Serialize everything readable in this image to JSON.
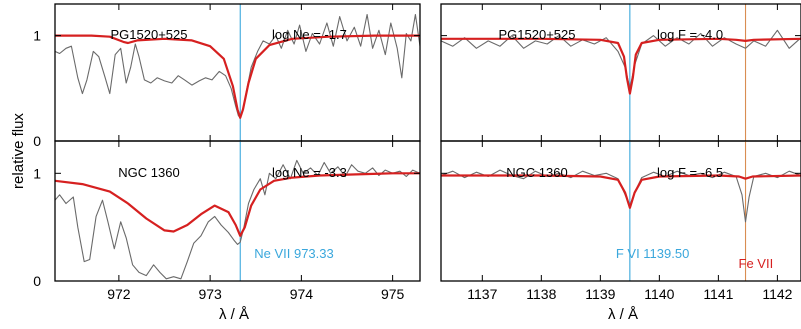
{
  "figure": {
    "ylabel": "relative flux",
    "xlabel": "λ / Å",
    "colors": {
      "model": "#d62020",
      "observed": "#6a6a6a",
      "line_marker_blue": "#3aa7dc",
      "line_marker_orange": "#d98d52",
      "annotation_blue": "#3aa7dc",
      "annotation_red": "#d62020"
    }
  },
  "chart_data": [
    {
      "type": "line",
      "panel": "left-top",
      "star": "PG1520+525",
      "abundance_label": "log Ne = -1.7",
      "xlim": [
        971.3,
        975.3
      ],
      "ylim": [
        0,
        1.3
      ],
      "xticks": [
        972,
        973,
        974,
        975
      ],
      "yticks": [
        0,
        1
      ],
      "ytick_labels": [
        "0",
        "1"
      ],
      "marker_lines": [
        {
          "x": 973.33,
          "color": "#3aa7dc"
        }
      ],
      "series": [
        {
          "kind": "model",
          "x": [
            971.3,
            971.7,
            971.9,
            972.05,
            972.1,
            972.2,
            972.5,
            972.8,
            973.0,
            973.15,
            973.25,
            973.3,
            973.33,
            973.36,
            973.42,
            973.5,
            973.65,
            973.9,
            974.3,
            974.8,
            975.3
          ],
          "y": [
            1.0,
            1.0,
            0.99,
            0.94,
            0.93,
            0.955,
            0.97,
            0.955,
            0.9,
            0.78,
            0.52,
            0.3,
            0.22,
            0.3,
            0.55,
            0.78,
            0.91,
            0.97,
            0.99,
            1.0,
            1.0
          ]
        },
        {
          "kind": "observed",
          "x": [
            971.3,
            971.35,
            971.42,
            971.48,
            971.55,
            971.6,
            971.65,
            971.72,
            971.78,
            971.85,
            971.9,
            971.96,
            972.02,
            972.08,
            972.13,
            972.18,
            972.22,
            972.28,
            972.35,
            972.42,
            972.5,
            972.58,
            972.65,
            972.72,
            972.8,
            972.88,
            972.95,
            973.02,
            973.1,
            973.17,
            973.23,
            973.28,
            973.31,
            973.33,
            973.36,
            973.4,
            973.45,
            973.52,
            973.58,
            973.65,
            973.72,
            973.78,
            973.85,
            973.92,
            973.98,
            974.05,
            974.12,
            974.2,
            974.28,
            974.35,
            974.42,
            974.5,
            974.58,
            974.65,
            974.72,
            974.78,
            974.85,
            974.92,
            974.98,
            975.05,
            975.1,
            975.15,
            975.2,
            975.25,
            975.3
          ],
          "y": [
            0.85,
            0.83,
            0.88,
            0.9,
            0.6,
            0.45,
            0.58,
            0.85,
            0.8,
            0.6,
            0.45,
            0.82,
            0.88,
            0.55,
            0.7,
            0.92,
            0.8,
            0.58,
            0.55,
            0.6,
            0.57,
            0.55,
            0.62,
            0.58,
            0.53,
            0.57,
            0.6,
            0.58,
            0.66,
            0.62,
            0.5,
            0.33,
            0.24,
            0.22,
            0.3,
            0.48,
            0.7,
            0.85,
            0.95,
            0.92,
            1.0,
            0.88,
            1.05,
            0.92,
            1.1,
            0.85,
            1.02,
            0.92,
            1.12,
            0.9,
            1.18,
            0.95,
            1.08,
            0.9,
            1.2,
            0.88,
            1.05,
            0.82,
            1.12,
            0.88,
            0.6,
            1.02,
            0.95,
            1.2,
            0.9
          ]
        }
      ]
    },
    {
      "type": "line",
      "panel": "left-bottom",
      "star": "NGC 1360",
      "abundance_label": "log Ne = -3.3",
      "line_annotation": "Ne VII 973.33",
      "xlim": [
        971.3,
        975.3
      ],
      "ylim": [
        0,
        1.3
      ],
      "xticks": [
        972,
        973,
        974,
        975
      ],
      "yticks": [
        0,
        1
      ],
      "ytick_labels": [
        "0",
        "1"
      ],
      "marker_lines": [
        {
          "x": 973.33,
          "color": "#3aa7dc"
        }
      ],
      "series": [
        {
          "kind": "model",
          "x": [
            971.3,
            971.6,
            971.9,
            972.1,
            972.3,
            972.5,
            972.6,
            972.75,
            972.9,
            973.05,
            973.2,
            973.28,
            973.33,
            973.38,
            973.45,
            973.55,
            973.7,
            973.9,
            974.2,
            974.6,
            975.0,
            975.3
          ],
          "y": [
            0.93,
            0.9,
            0.83,
            0.72,
            0.58,
            0.47,
            0.46,
            0.52,
            0.62,
            0.7,
            0.64,
            0.52,
            0.42,
            0.5,
            0.7,
            0.85,
            0.93,
            0.96,
            0.98,
            0.99,
            1.0,
            1.0
          ]
        },
        {
          "kind": "observed",
          "x": [
            971.3,
            971.35,
            971.42,
            971.5,
            971.55,
            971.62,
            971.68,
            971.75,
            971.82,
            971.88,
            971.95,
            972.02,
            972.08,
            972.15,
            972.22,
            972.3,
            972.38,
            972.45,
            972.52,
            972.6,
            972.68,
            972.75,
            972.82,
            972.9,
            972.98,
            973.05,
            973.12,
            973.2,
            973.26,
            973.3,
            973.33,
            973.37,
            973.42,
            973.48,
            973.55,
            973.6,
            973.65,
            973.72,
            973.8,
            973.88,
            973.95,
            974.02,
            974.1,
            974.18,
            974.25,
            974.32,
            974.4,
            974.48,
            974.55,
            974.62,
            974.7,
            974.78,
            974.85,
            974.92,
            975.0,
            975.08,
            975.15,
            975.22,
            975.3
          ],
          "y": [
            0.75,
            0.8,
            0.72,
            0.78,
            0.5,
            0.18,
            0.2,
            0.6,
            0.75,
            0.55,
            0.3,
            0.55,
            0.4,
            0.15,
            0.08,
            0.05,
            0.15,
            0.08,
            0.02,
            0.04,
            0.02,
            0.18,
            0.35,
            0.42,
            0.55,
            0.6,
            0.52,
            0.45,
            0.38,
            0.34,
            0.36,
            0.5,
            0.72,
            0.85,
            0.95,
            0.8,
            1.0,
            0.95,
            1.08,
            0.95,
            1.12,
            1.0,
            1.05,
            0.98,
            1.1,
            1.0,
            1.06,
            0.97,
            1.08,
            1.02,
            1.0,
            1.05,
            0.98,
            1.03,
            1.0,
            1.02,
            0.97,
            1.03,
            1.0
          ]
        }
      ]
    },
    {
      "type": "line",
      "panel": "right-top",
      "star": "PG1520+525",
      "abundance_label": "log F = -4.0",
      "xlim": [
        1136.3,
        1142.4
      ],
      "ylim": [
        0,
        1.3
      ],
      "xticks": [
        1137,
        1138,
        1139,
        1140,
        1141,
        1142
      ],
      "yticks": [
        0,
        1
      ],
      "ytick_labels": [
        "",
        ""
      ],
      "marker_lines": [
        {
          "x": 1139.5,
          "color": "#3aa7dc"
        },
        {
          "x": 1141.46,
          "color": "#d98d52"
        }
      ],
      "series": [
        {
          "kind": "model",
          "x": [
            1136.3,
            1138.0,
            1139.0,
            1139.3,
            1139.4,
            1139.45,
            1139.5,
            1139.55,
            1139.6,
            1139.7,
            1140.0,
            1141.0,
            1141.3,
            1141.46,
            1141.6,
            1142.4
          ],
          "y": [
            0.97,
            0.97,
            0.96,
            0.93,
            0.8,
            0.6,
            0.45,
            0.6,
            0.82,
            0.93,
            0.96,
            0.97,
            0.96,
            0.95,
            0.96,
            0.97
          ]
        },
        {
          "kind": "observed",
          "x": [
            1136.3,
            1136.5,
            1136.7,
            1136.9,
            1137.1,
            1137.3,
            1137.5,
            1137.7,
            1137.9,
            1138.1,
            1138.3,
            1138.5,
            1138.7,
            1138.9,
            1139.1,
            1139.3,
            1139.42,
            1139.5,
            1139.58,
            1139.7,
            1139.9,
            1140.1,
            1140.3,
            1140.5,
            1140.7,
            1140.9,
            1141.1,
            1141.3,
            1141.46,
            1141.6,
            1141.8,
            1142.0,
            1142.2,
            1142.4
          ],
          "y": [
            0.95,
            0.9,
            0.98,
            0.88,
            0.95,
            0.9,
            1.0,
            0.88,
            0.95,
            0.92,
            1.0,
            0.9,
            0.96,
            0.92,
            0.98,
            0.85,
            0.7,
            0.5,
            0.72,
            0.92,
            1.0,
            0.9,
            0.98,
            0.92,
            1.02,
            0.9,
            0.98,
            0.92,
            0.88,
            0.95,
            0.9,
            1.05,
            0.88,
            0.98
          ]
        }
      ]
    },
    {
      "type": "line",
      "panel": "right-bottom",
      "star": "NGC 1360",
      "abundance_label": "log F = -6.5",
      "line_annotation": "F VI 1139.50",
      "line_annotation_2": "Fe VII",
      "xlim": [
        1136.3,
        1142.4
      ],
      "ylim": [
        0,
        1.3
      ],
      "xticks": [
        1137,
        1138,
        1139,
        1140,
        1141,
        1142
      ],
      "xtick_labels": [
        "1137",
        "1138",
        "1139",
        "1140",
        "1141",
        "1142"
      ],
      "yticks": [
        0,
        1
      ],
      "ytick_labels": [
        "",
        ""
      ],
      "marker_lines": [
        {
          "x": 1139.5,
          "color": "#3aa7dc"
        },
        {
          "x": 1141.46,
          "color": "#d98d52"
        }
      ],
      "series": [
        {
          "kind": "model",
          "x": [
            1136.3,
            1138.0,
            1139.0,
            1139.3,
            1139.42,
            1139.5,
            1139.58,
            1139.7,
            1140.0,
            1141.0,
            1141.35,
            1141.46,
            1141.58,
            1142.4
          ],
          "y": [
            0.98,
            0.98,
            0.97,
            0.94,
            0.82,
            0.68,
            0.82,
            0.94,
            0.97,
            0.98,
            0.97,
            0.95,
            0.97,
            0.98
          ]
        },
        {
          "kind": "observed",
          "x": [
            1136.3,
            1136.5,
            1136.7,
            1136.9,
            1137.1,
            1137.3,
            1137.5,
            1137.7,
            1137.9,
            1138.1,
            1138.3,
            1138.5,
            1138.7,
            1138.9,
            1139.1,
            1139.3,
            1139.42,
            1139.5,
            1139.58,
            1139.7,
            1139.9,
            1140.1,
            1140.3,
            1140.5,
            1140.7,
            1140.9,
            1141.1,
            1141.3,
            1141.4,
            1141.46,
            1141.52,
            1141.6,
            1141.8,
            1142.0,
            1142.2,
            1142.4
          ],
          "y": [
            0.98,
            1.02,
            0.96,
            1.01,
            0.97,
            1.03,
            0.98,
            0.95,
            1.02,
            0.97,
            1.0,
            0.96,
            1.02,
            0.98,
            1.0,
            0.95,
            0.8,
            0.7,
            0.82,
            0.96,
            1.01,
            0.97,
            1.02,
            0.98,
            1.0,
            0.96,
            1.01,
            0.97,
            0.8,
            0.55,
            0.78,
            0.97,
            1.0,
            0.96,
            1.02,
            0.98
          ]
        }
      ]
    }
  ]
}
